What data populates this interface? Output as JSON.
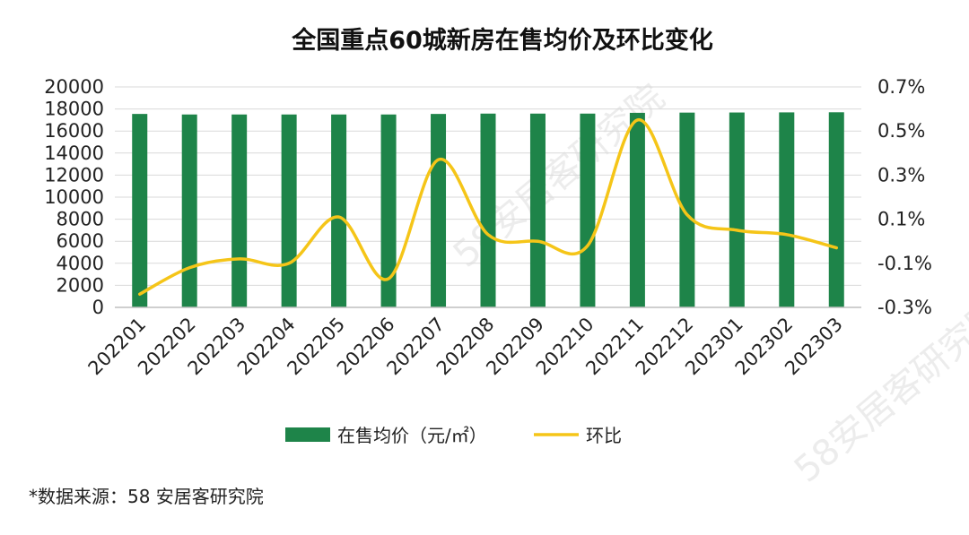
{
  "chart_data": {
    "type": "bar",
    "title": "全国重点60城新房在售均价及环比变化",
    "categories": [
      "202201",
      "202202",
      "202203",
      "202204",
      "202205",
      "202206",
      "202207",
      "202208",
      "202209",
      "202210",
      "202211",
      "202212",
      "202301",
      "202302",
      "202303"
    ],
    "series": [
      {
        "name": "在售均价（元/㎡）",
        "type": "bar",
        "axis": "left",
        "color": "#1e8449",
        "values": [
          17550,
          17500,
          17500,
          17500,
          17500,
          17500,
          17550,
          17580,
          17580,
          17580,
          17650,
          17670,
          17680,
          17690,
          17700
        ]
      },
      {
        "name": "环比",
        "type": "line",
        "axis": "right",
        "color": "#f5c518",
        "values": [
          -0.24,
          -0.12,
          -0.08,
          -0.1,
          0.11,
          -0.17,
          0.37,
          0.03,
          0.0,
          -0.02,
          0.55,
          0.12,
          0.05,
          0.03,
          -0.03
        ]
      }
    ],
    "y_left": {
      "min": 0,
      "max": 20000,
      "ticks": [
        "0",
        "2000",
        "4000",
        "6000",
        "8000",
        "10000",
        "12000",
        "14000",
        "16000",
        "18000",
        "20000"
      ]
    },
    "y_right": {
      "min": -0.3,
      "max": 0.7,
      "ticks": [
        "-0.3%",
        "-0.1%",
        "0.1%",
        "0.3%",
        "0.5%",
        "0.7%"
      ]
    },
    "grid": true,
    "legend": "bottom"
  },
  "watermark": "58安居客研究院",
  "source": "*数据来源：58 安居客研究院"
}
